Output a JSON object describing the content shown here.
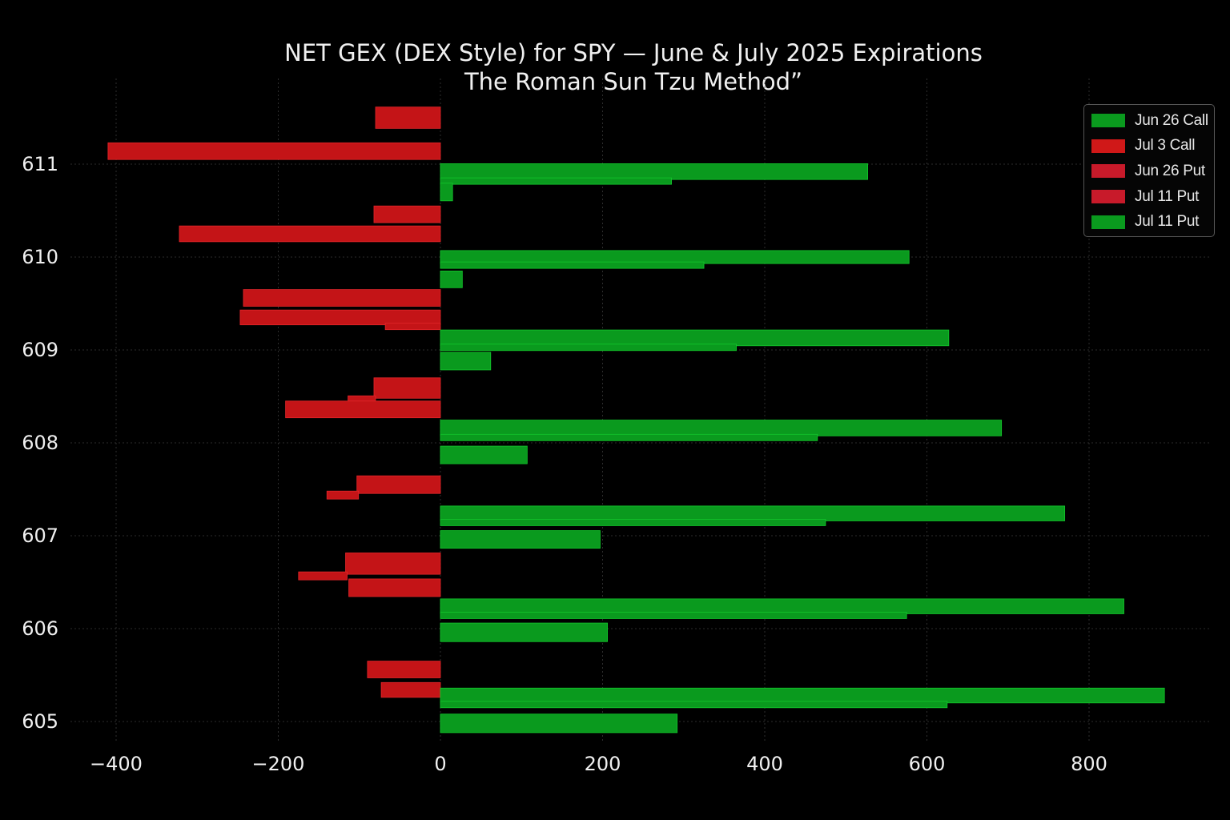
{
  "title": "NET GEX (DEX Style) for SPY — June & July 2025 Expirations",
  "subtitle": "The Roman Sun Tzu Methodˮ",
  "legend": [
    {
      "label": "Jun 26 Call",
      "color": "#0a9a1e"
    },
    {
      "label": "Jul 3 Call",
      "color": "#d01818"
    },
    {
      "label": "Jun 26 Put",
      "color": "#c81a2a"
    },
    {
      "label": "Jul 11 Put",
      "color": "#c81a2a"
    },
    {
      "label": "Jul 11 Put",
      "color": "#0a9a1e"
    }
  ],
  "colors": {
    "positive": "#0a9a1e",
    "negative": "#c41417",
    "background": "#000000",
    "grid": "#3a3a3a"
  },
  "chart_data": {
    "type": "bar",
    "orientation": "horizontal",
    "title": "NET GEX (DEX Style) for SPY — June & July 2025 Expirations",
    "subtitle": "The Roman Sun Tzu Methodˮ",
    "xlim": [
      -420,
      920
    ],
    "ylim": [
      604.8,
      611.5
    ],
    "x_ticks": [
      -400,
      -200,
      0,
      200,
      400,
      600,
      800
    ],
    "x_tick_labels": [
      "−400",
      "−200",
      "0",
      "200",
      "400",
      "600",
      "800"
    ],
    "y_ticks": [
      605,
      606,
      607,
      608,
      609,
      610,
      611
    ],
    "y_tick_labels": [
      "605",
      "606",
      "607",
      "608",
      "609",
      "610",
      "611"
    ],
    "grid": true,
    "legend_position": "top-right",
    "bars": [
      {
        "strike": 611.5,
        "value": -80,
        "height": 0.23
      },
      {
        "strike": 611.14,
        "value": -410,
        "height": 0.18
      },
      {
        "strike": 610.92,
        "value": 527,
        "height": 0.17,
        "inner": 285
      },
      {
        "strike": 610.7,
        "value": 15,
        "height": 0.19
      },
      {
        "strike": 610.46,
        "value": -82,
        "height": 0.18
      },
      {
        "strike": 610.25,
        "value": -322,
        "height": 0.17
      },
      {
        "strike": 610.0,
        "value": 578,
        "height": 0.14,
        "inner": 325
      },
      {
        "strike": 609.76,
        "value": 27,
        "height": 0.18
      },
      {
        "strike": 609.56,
        "value": -243,
        "height": 0.18
      },
      {
        "strike": 609.35,
        "value": -247,
        "height": 0.16,
        "inner": -68
      },
      {
        "strike": 609.13,
        "value": 627,
        "height": 0.17,
        "inner": 365
      },
      {
        "strike": 608.88,
        "value": 62,
        "height": 0.19
      },
      {
        "strike": 608.59,
        "value": -82,
        "height": 0.22,
        "step": -114
      },
      {
        "strike": 608.36,
        "value": -191,
        "height": 0.18
      },
      {
        "strike": 608.16,
        "value": 692,
        "height": 0.17,
        "inner": 465
      },
      {
        "strike": 607.87,
        "value": 107,
        "height": 0.19
      },
      {
        "strike": 607.55,
        "value": -103,
        "height": 0.19,
        "step": -140
      },
      {
        "strike": 607.24,
        "value": 770,
        "height": 0.16,
        "inner": 475
      },
      {
        "strike": 606.96,
        "value": 197,
        "height": 0.19
      },
      {
        "strike": 606.7,
        "value": -117,
        "height": 0.23,
        "step": -175
      },
      {
        "strike": 606.44,
        "value": -113,
        "height": 0.19
      },
      {
        "strike": 606.24,
        "value": 843,
        "height": 0.16,
        "inner": 575
      },
      {
        "strike": 605.96,
        "value": 206,
        "height": 0.2
      },
      {
        "strike": 605.56,
        "value": -90,
        "height": 0.18
      },
      {
        "strike": 605.34,
        "value": -73,
        "height": 0.16
      },
      {
        "strike": 605.28,
        "value": 893,
        "height": 0.16,
        "inner": 625
      },
      {
        "strike": 604.98,
        "value": 292,
        "height": 0.2
      }
    ]
  }
}
